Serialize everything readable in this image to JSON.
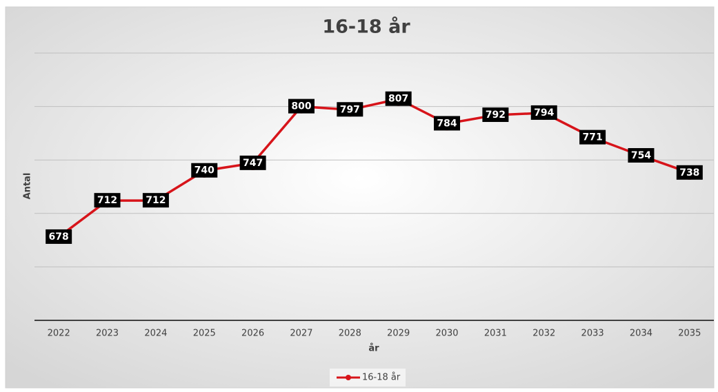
{
  "chart_data": {
    "type": "line",
    "title": "16-18 år",
    "y_label": "Antal",
    "x_label": "år",
    "categories": [
      "2022",
      "2023",
      "2024",
      "2025",
      "2026",
      "2027",
      "2028",
      "2029",
      "2030",
      "2031",
      "2032",
      "2033",
      "2034",
      "2035"
    ],
    "series": [
      {
        "name": "16-18 år",
        "color": "#d7141a",
        "values": [
          678,
          712,
          712,
          740,
          747,
          800,
          797,
          807,
          784,
          792,
          794,
          771,
          754,
          738
        ]
      }
    ],
    "ylim": [
      600,
      850
    ],
    "yticks": [
      600,
      650,
      700,
      750,
      800,
      850
    ],
    "grid": true,
    "legend": "bottom"
  }
}
